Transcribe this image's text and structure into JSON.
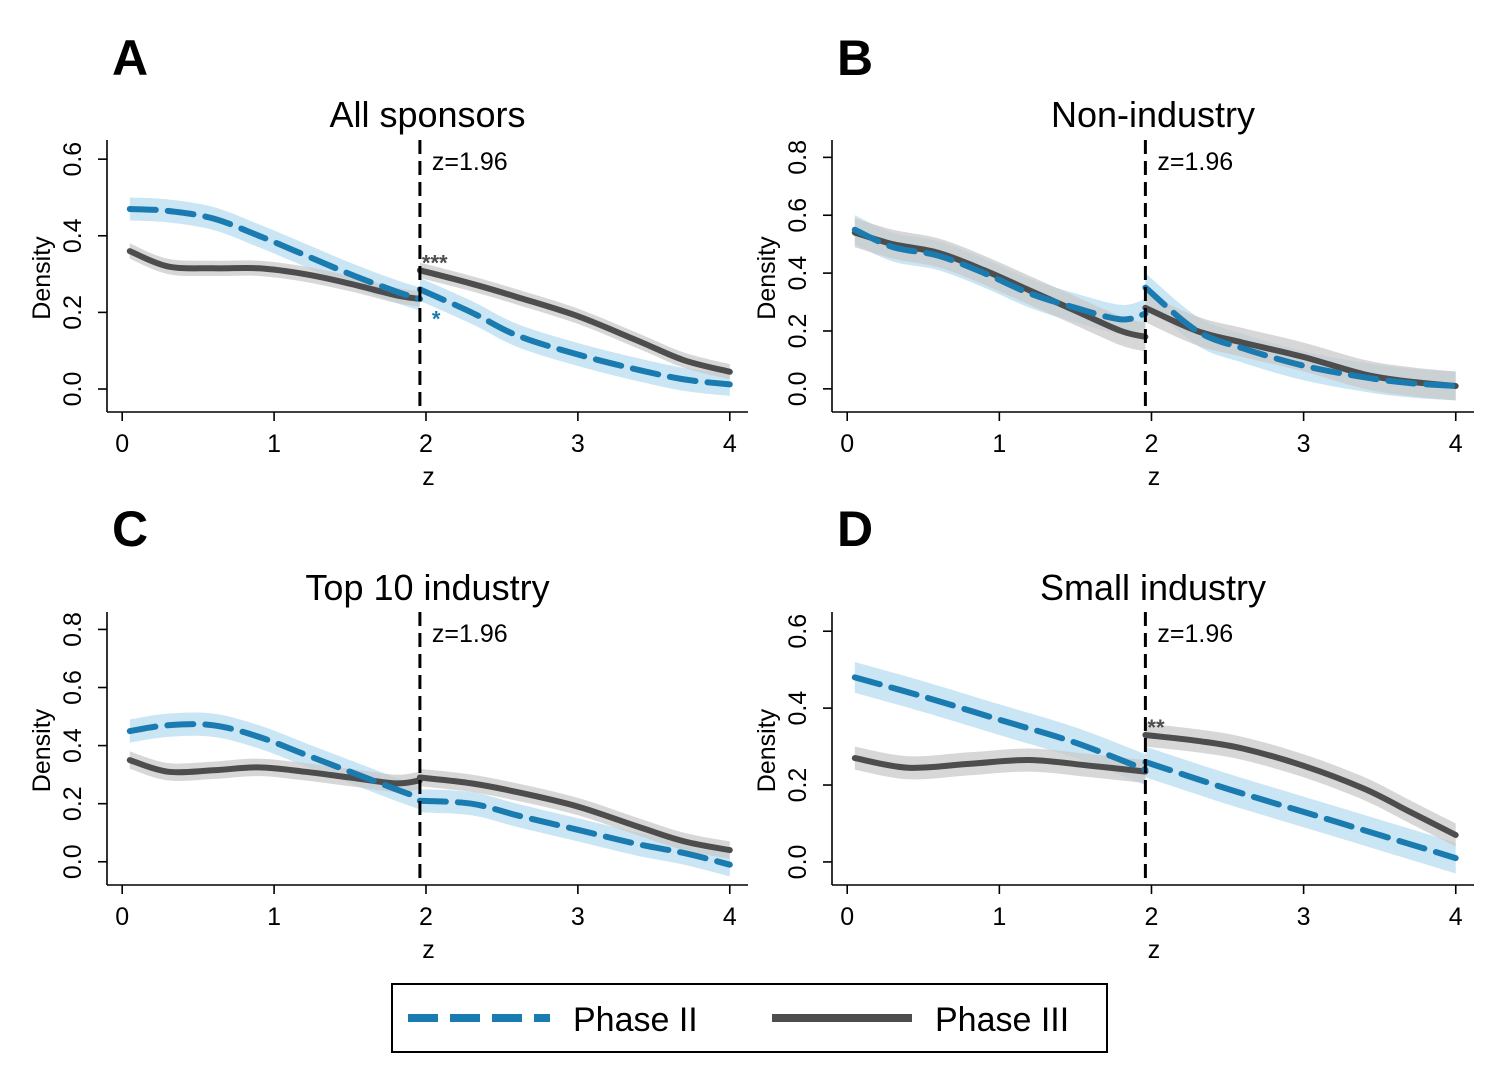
{
  "figure": {
    "colors": {
      "phase2": "#1a7bb0",
      "phase2_band": "#b8dcf0",
      "phase3": "#4d4d4d",
      "phase3_band": "#c9c9c9"
    },
    "legend": {
      "phase2_label": "Phase II",
      "phase3_label": "Phase III"
    }
  },
  "chart_data": [
    {
      "type": "line",
      "letter": "A",
      "title": "All sponsors",
      "xlabel": "z",
      "ylabel": "Density",
      "xlim": [
        -0.1,
        4.12
      ],
      "ylim": [
        -0.06,
        0.65
      ],
      "xticks": [
        "0",
        "1",
        "2",
        "3",
        "4"
      ],
      "yticks": [
        "0.0",
        "0.2",
        "0.4",
        "0.6"
      ],
      "cutoff": 1.96,
      "cutoff_label": "z=1.96",
      "series": [
        {
          "name": "Phase II",
          "style": "dashed",
          "band_width": 0.03,
          "left": [
            [
              0.05,
              0.47
            ],
            [
              0.3,
              0.465
            ],
            [
              0.6,
              0.445
            ],
            [
              0.9,
              0.4
            ],
            [
              1.2,
              0.35
            ],
            [
              1.5,
              0.3
            ],
            [
              1.8,
              0.255
            ],
            [
              1.96,
              0.235
            ]
          ],
          "right": [
            [
              1.96,
              0.26
            ],
            [
              2.3,
              0.2
            ],
            [
              2.6,
              0.14
            ],
            [
              3.0,
              0.09
            ],
            [
              3.4,
              0.05
            ],
            [
              3.7,
              0.025
            ],
            [
              4.0,
              0.012
            ]
          ]
        },
        {
          "name": "Phase III",
          "style": "solid",
          "band_width": 0.02,
          "left": [
            [
              0.05,
              0.36
            ],
            [
              0.3,
              0.32
            ],
            [
              0.6,
              0.315
            ],
            [
              0.9,
              0.315
            ],
            [
              1.2,
              0.3
            ],
            [
              1.5,
              0.275
            ],
            [
              1.8,
              0.245
            ],
            [
              1.96,
              0.235
            ]
          ],
          "right": [
            [
              1.96,
              0.31
            ],
            [
              2.3,
              0.275
            ],
            [
              2.6,
              0.24
            ],
            [
              3.0,
              0.19
            ],
            [
              3.4,
              0.125
            ],
            [
              3.7,
              0.075
            ],
            [
              4.0,
              0.045
            ]
          ]
        }
      ],
      "stars": [
        {
          "text": "***",
          "series": "Phase III",
          "x": 1.96,
          "y": 0.31
        },
        {
          "text": "*",
          "series": "Phase II",
          "x": 1.96,
          "y": 0.2
        }
      ]
    },
    {
      "type": "line",
      "letter": "B",
      "title": "Non-industry",
      "xlabel": "z",
      "ylabel": "Density",
      "xlim": [
        -0.1,
        4.12
      ],
      "ylim": [
        -0.08,
        0.86
      ],
      "xticks": [
        "0",
        "1",
        "2",
        "3",
        "4"
      ],
      "yticks": [
        "0.0",
        "0.2",
        "0.4",
        "0.6",
        "0.8"
      ],
      "cutoff": 1.96,
      "cutoff_label": "z=1.96",
      "series": [
        {
          "name": "Phase II",
          "style": "dashed",
          "band_width": 0.05,
          "left": [
            [
              0.05,
              0.55
            ],
            [
              0.3,
              0.49
            ],
            [
              0.6,
              0.46
            ],
            [
              0.9,
              0.4
            ],
            [
              1.2,
              0.33
            ],
            [
              1.5,
              0.28
            ],
            [
              1.8,
              0.24
            ],
            [
              1.96,
              0.26
            ]
          ],
          "right": [
            [
              1.96,
              0.35
            ],
            [
              2.3,
              0.2
            ],
            [
              2.6,
              0.14
            ],
            [
              3.0,
              0.08
            ],
            [
              3.4,
              0.04
            ],
            [
              3.7,
              0.02
            ],
            [
              4.0,
              0.01
            ]
          ]
        },
        {
          "name": "Phase III",
          "style": "solid",
          "band_width": 0.05,
          "left": [
            [
              0.05,
              0.54
            ],
            [
              0.3,
              0.5
            ],
            [
              0.6,
              0.47
            ],
            [
              0.9,
              0.41
            ],
            [
              1.2,
              0.34
            ],
            [
              1.5,
              0.27
            ],
            [
              1.8,
              0.2
            ],
            [
              1.96,
              0.18
            ]
          ],
          "right": [
            [
              1.96,
              0.28
            ],
            [
              2.3,
              0.2
            ],
            [
              2.6,
              0.16
            ],
            [
              3.0,
              0.11
            ],
            [
              3.4,
              0.05
            ],
            [
              3.7,
              0.025
            ],
            [
              4.0,
              0.01
            ]
          ]
        }
      ],
      "stars": []
    },
    {
      "type": "line",
      "letter": "C",
      "title": "Top 10 industry",
      "xlabel": "z",
      "ylabel": "Density",
      "xlim": [
        -0.1,
        4.12
      ],
      "ylim": [
        -0.08,
        0.86
      ],
      "xticks": [
        "0",
        "1",
        "2",
        "3",
        "4"
      ],
      "yticks": [
        "0.0",
        "0.2",
        "0.4",
        "0.6",
        "0.8"
      ],
      "cutoff": 1.96,
      "cutoff_label": "z=1.96",
      "series": [
        {
          "name": "Phase II",
          "style": "dashed",
          "band_width": 0.04,
          "left": [
            [
              0.05,
              0.45
            ],
            [
              0.3,
              0.47
            ],
            [
              0.6,
              0.47
            ],
            [
              0.9,
              0.43
            ],
            [
              1.2,
              0.37
            ],
            [
              1.5,
              0.31
            ],
            [
              1.8,
              0.25
            ],
            [
              1.96,
              0.22
            ]
          ],
          "right": [
            [
              1.96,
              0.21
            ],
            [
              2.3,
              0.2
            ],
            [
              2.6,
              0.16
            ],
            [
              3.0,
              0.11
            ],
            [
              3.4,
              0.06
            ],
            [
              3.7,
              0.03
            ],
            [
              4.0,
              -0.01
            ]
          ]
        },
        {
          "name": "Phase III",
          "style": "solid",
          "band_width": 0.03,
          "left": [
            [
              0.05,
              0.35
            ],
            [
              0.3,
              0.31
            ],
            [
              0.6,
              0.315
            ],
            [
              0.9,
              0.325
            ],
            [
              1.2,
              0.31
            ],
            [
              1.5,
              0.29
            ],
            [
              1.8,
              0.27
            ],
            [
              1.96,
              0.28
            ]
          ],
          "right": [
            [
              1.96,
              0.29
            ],
            [
              2.3,
              0.27
            ],
            [
              2.6,
              0.24
            ],
            [
              3.0,
              0.19
            ],
            [
              3.4,
              0.12
            ],
            [
              3.7,
              0.07
            ],
            [
              4.0,
              0.04
            ]
          ]
        }
      ],
      "stars": []
    },
    {
      "type": "line",
      "letter": "D",
      "title": "Small industry",
      "xlabel": "z",
      "ylabel": "Density",
      "xlim": [
        -0.1,
        4.12
      ],
      "ylim": [
        -0.06,
        0.65
      ],
      "xticks": [
        "0",
        "1",
        "2",
        "3",
        "4"
      ],
      "yticks": [
        "0.0",
        "0.2",
        "0.4",
        "0.6"
      ],
      "cutoff": 1.96,
      "cutoff_label": "z=1.96",
      "series": [
        {
          "name": "Phase II",
          "style": "dashed",
          "band_width": 0.04,
          "left": [
            [
              0.05,
              0.48
            ],
            [
              0.5,
              0.43
            ],
            [
              1.0,
              0.37
            ],
            [
              1.5,
              0.31
            ],
            [
              1.96,
              0.24
            ]
          ],
          "right": [
            [
              1.96,
              0.26
            ],
            [
              2.5,
              0.19
            ],
            [
              3.0,
              0.13
            ],
            [
              3.5,
              0.07
            ],
            [
              4.0,
              0.01
            ]
          ]
        },
        {
          "name": "Phase III",
          "style": "solid",
          "band_width": 0.03,
          "left": [
            [
              0.05,
              0.27
            ],
            [
              0.4,
              0.245
            ],
            [
              0.8,
              0.255
            ],
            [
              1.2,
              0.265
            ],
            [
              1.6,
              0.25
            ],
            [
              1.96,
              0.235
            ]
          ],
          "right": [
            [
              1.96,
              0.33
            ],
            [
              2.3,
              0.315
            ],
            [
              2.6,
              0.295
            ],
            [
              3.0,
              0.25
            ],
            [
              3.4,
              0.19
            ],
            [
              3.7,
              0.13
            ],
            [
              4.0,
              0.07
            ]
          ]
        }
      ],
      "stars": [
        {
          "text": "**",
          "series": "Phase III",
          "x": 1.96,
          "y": 0.33
        }
      ]
    }
  ]
}
